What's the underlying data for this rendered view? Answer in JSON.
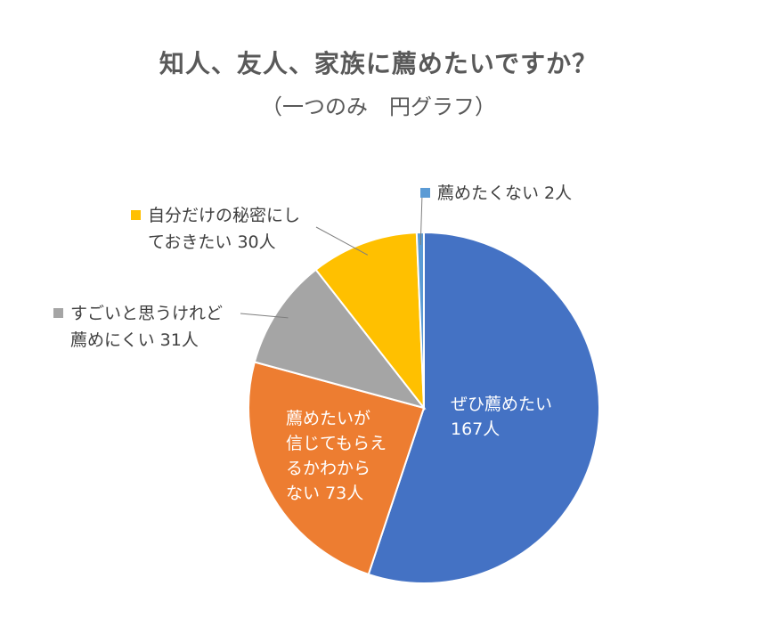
{
  "chart_data": {
    "type": "pie",
    "title": "知人、友人、家族に薦めたいですか？",
    "subtitle": "（一つのみ　円グラフ）",
    "slices": [
      {
        "label_lines": [
          "ぜひ薦めたい",
          "167人"
        ],
        "value": 167,
        "color": "#4472C4"
      },
      {
        "label_lines": [
          "薦めたいが",
          "信じてもらえ",
          "るかわから",
          "ない  73人"
        ],
        "value": 73,
        "color": "#ED7D31"
      },
      {
        "label_lines": [
          "すごいと思うけれど",
          "薦めにくい  31人"
        ],
        "value": 31,
        "color": "#A5A5A5"
      },
      {
        "label_lines": [
          "自分だけの秘密にし",
          "ておきたい  30人"
        ],
        "value": 30,
        "color": "#FFC000"
      },
      {
        "label_lines": [
          "薦めたくない  2人"
        ],
        "value": 2,
        "color": "#5B9BD5"
      }
    ]
  }
}
